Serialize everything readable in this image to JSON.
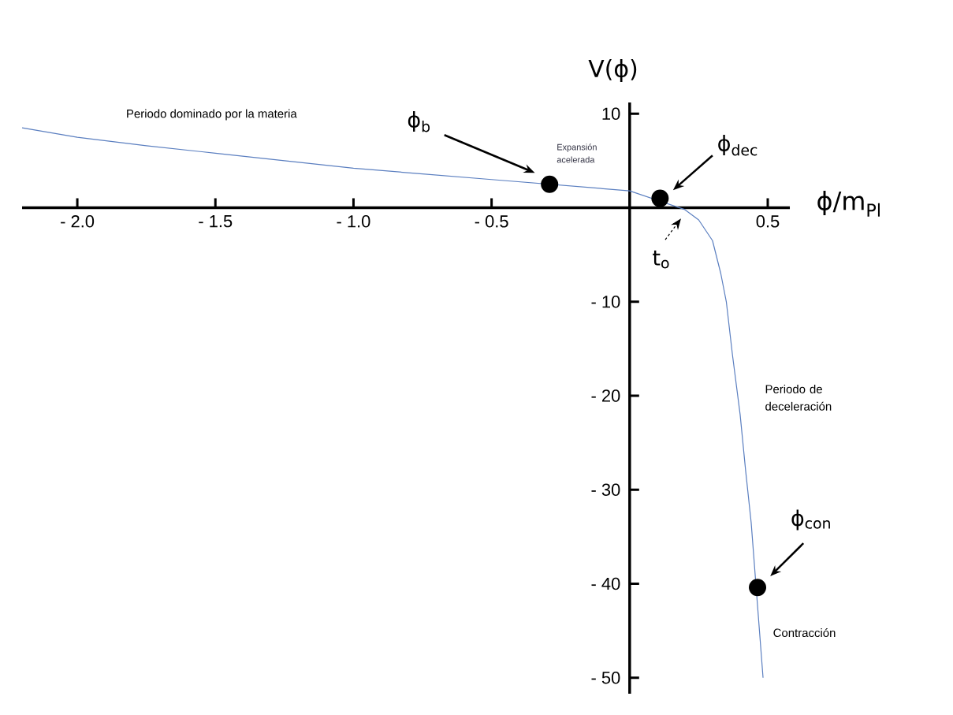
{
  "chart_data": {
    "type": "line",
    "xlabel": "ϕ/m$_{Pl}$",
    "ylabel": "V(ϕ)",
    "xlim": [
      -2.2,
      0.58
    ],
    "ylim": [
      -51.7,
      11.2
    ],
    "xticks": [
      {
        "value": -2.0,
        "label": "- 2.0"
      },
      {
        "value": -1.5,
        "label": "- 1.5"
      },
      {
        "value": -1.0,
        "label": "- 1.0"
      },
      {
        "value": -0.5,
        "label": "- 0.5"
      },
      0.5
    ],
    "yticks": [
      10,
      {
        "value": -10,
        "label": "- 10"
      },
      {
        "value": -20,
        "label": "- 20"
      },
      {
        "value": -30,
        "label": "- 30"
      },
      {
        "value": -40,
        "label": "- 40"
      },
      {
        "value": -50,
        "label": "- 50"
      }
    ],
    "grid": false,
    "marker": "none",
    "line_style": "solid",
    "series": [
      {
        "color": "#5b7fc0",
        "x": [
          -2.2,
          -2.0,
          -1.75,
          -1.5,
          -1.25,
          -1.0,
          -0.75,
          -0.5,
          0,
          0.2,
          0.25,
          0.3,
          0.33,
          0.35,
          0.372,
          0.4,
          0.42,
          0.44,
          0.483
        ],
        "values": [
          8.5,
          7.5,
          6.6,
          5.8,
          5.0,
          4.2,
          3.6,
          3.0,
          1.8,
          -0.2,
          -1.3,
          -3.5,
          -7,
          -10,
          -15.6,
          -22,
          -28,
          -33.5,
          -50
        ]
      },
      {
        "type": "scatter",
        "color": "#000000",
        "marker": "circle",
        "x": [
          -0.29,
          0.11,
          0.463
        ],
        "values": [
          2.5,
          1.0,
          -40.4
        ]
      }
    ],
    "annotations": [
      "Periodo dominado por la materia",
      "Expansión acelerada",
      "Periodo de deceleración",
      "Contracción",
      "ϕ$_{b}$",
      "ϕ$_{dec}$",
      "ϕ$_{con}$",
      "t$_{o}$"
    ]
  }
}
